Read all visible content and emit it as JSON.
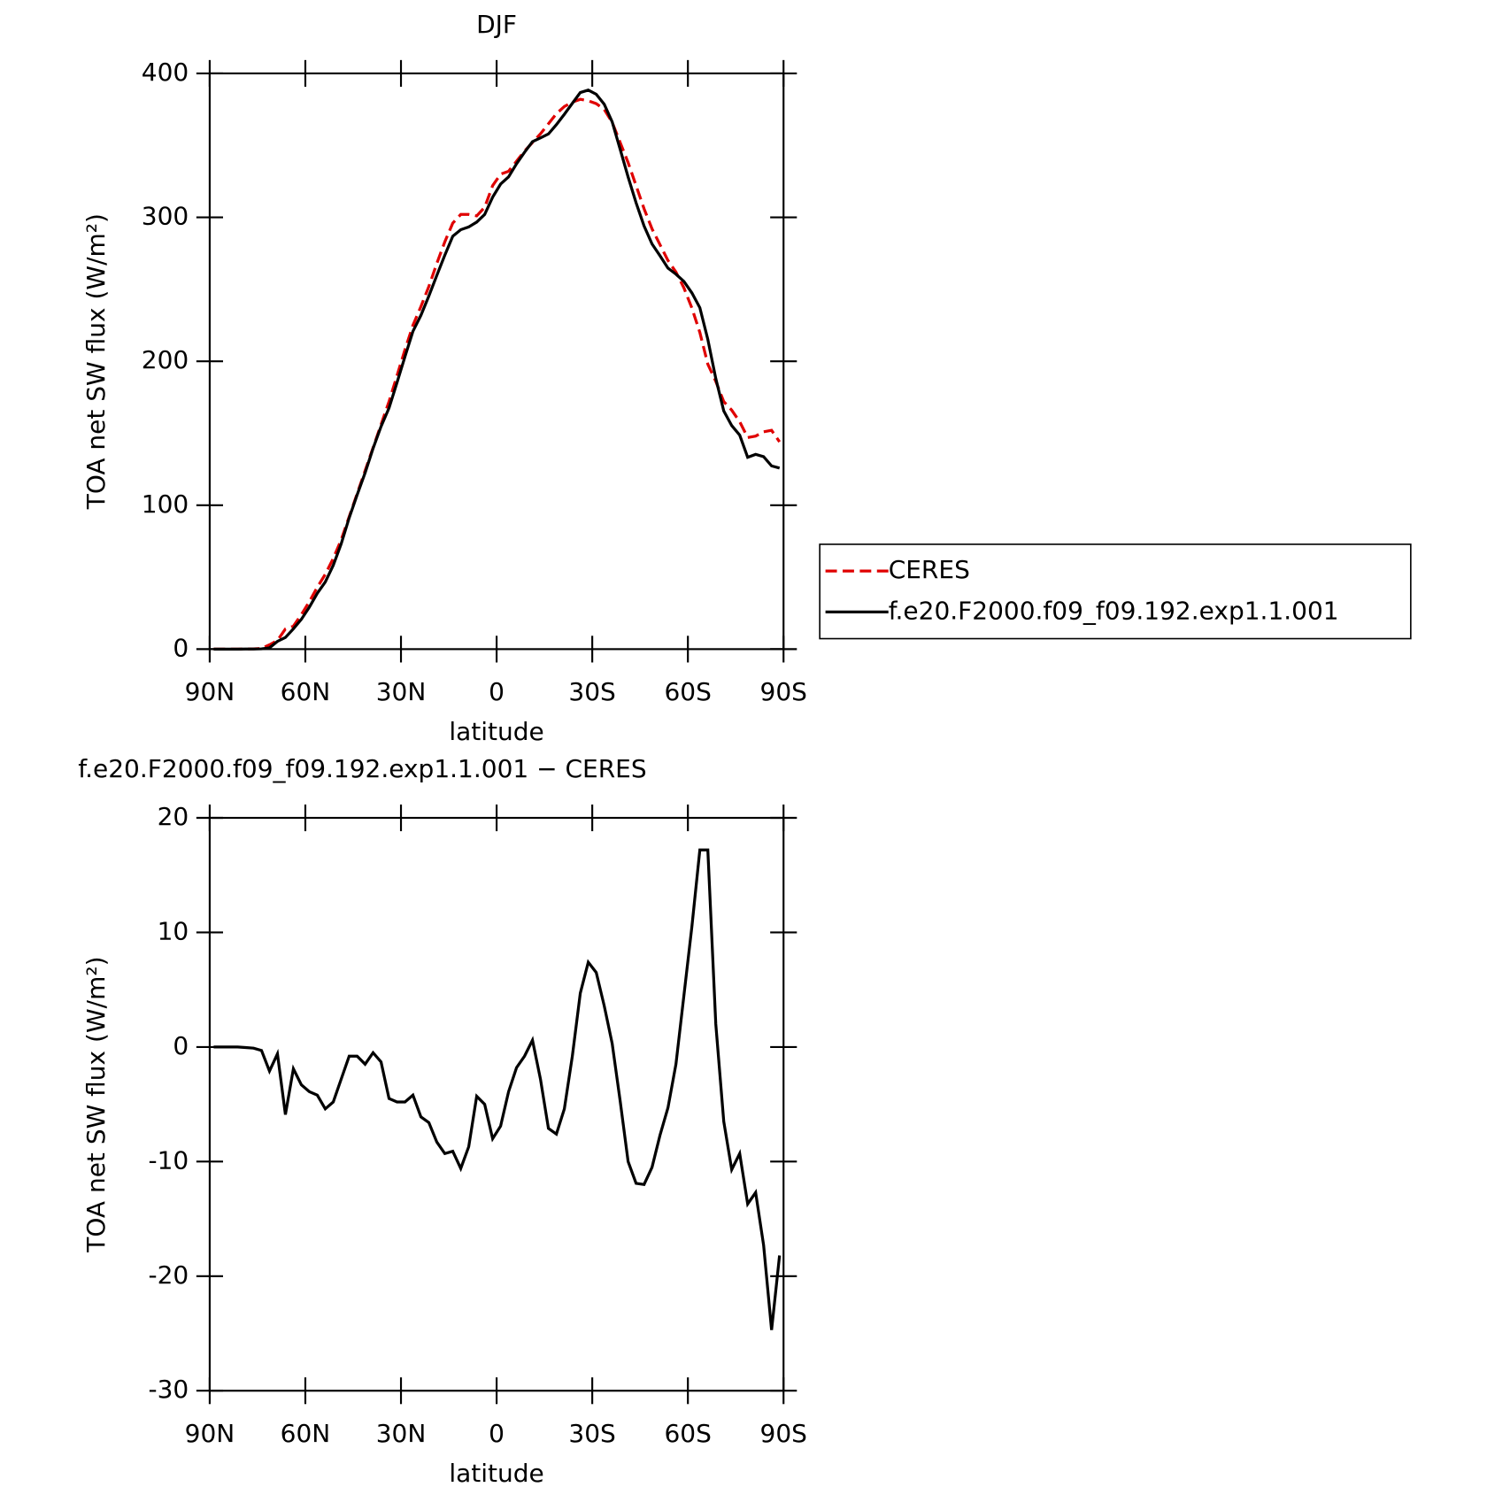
{
  "chart_data": [
    {
      "type": "line",
      "title": "DJF",
      "xlabel": "latitude",
      "ylabel": "TOA net SW flux (W/m²)",
      "x": [
        88.75,
        86.25,
        83.75,
        81.25,
        78.75,
        76.25,
        73.75,
        71.25,
        68.75,
        66.25,
        63.75,
        61.25,
        58.75,
        56.25,
        53.75,
        51.25,
        48.75,
        46.25,
        43.75,
        41.25,
        38.75,
        36.25,
        33.75,
        31.25,
        28.75,
        26.25,
        23.75,
        21.25,
        18.75,
        16.25,
        13.75,
        11.25,
        8.75,
        6.25,
        3.75,
        1.25,
        -1.25,
        -3.75,
        -6.25,
        -8.75,
        -11.25,
        -13.75,
        -16.25,
        -18.75,
        -21.25,
        -23.75,
        -26.25,
        -28.75,
        -31.25,
        -33.75,
        -36.25,
        -38.75,
        -41.25,
        -43.75,
        -46.25,
        -48.75,
        -51.25,
        -53.75,
        -56.25,
        -58.75,
        -61.25,
        -63.75,
        -66.25,
        -68.75,
        -71.25,
        -73.75,
        -76.25,
        -78.75,
        -81.25,
        -83.75,
        -86.25,
        -88.75
      ],
      "xlim": [
        90,
        -90
      ],
      "xticks": [
        {
          "value": 90,
          "label": "90N"
        },
        {
          "value": 60,
          "label": "60N"
        },
        {
          "value": 30,
          "label": "30N"
        },
        0,
        {
          "value": -30,
          "label": "30S"
        },
        {
          "value": -60,
          "label": "60S"
        },
        {
          "value": -90,
          "label": "90S"
        }
      ],
      "ylim": [
        0,
        400
      ],
      "yticks": [
        0,
        100,
        200,
        300,
        400
      ],
      "legend": "right",
      "series": [
        {
          "name": "CERES",
          "color": "#e00000",
          "dash": "dashed",
          "values": [
            0,
            0,
            0,
            0,
            0.1,
            0.2,
            0.5,
            3,
            6,
            14,
            16,
            24,
            33,
            43,
            52,
            63,
            76,
            92,
            108,
            124,
            140,
            156,
            172,
            190,
            208,
            225,
            238,
            252,
            268,
            283,
            296,
            302,
            302,
            301,
            307,
            322,
            330,
            332,
            339,
            346,
            352,
            358,
            365,
            372,
            377,
            380,
            382,
            381,
            379,
            375,
            366,
            352,
            338,
            322,
            306,
            292,
            281,
            270,
            262,
            251,
            237,
            220,
            198,
            186,
            172,
            166,
            158,
            147,
            148,
            151,
            152,
            144
          ]
        },
        {
          "name": "f.e20.F2000.f09_f09.192.exp1.1.001",
          "color": "#000000",
          "values": [
            0,
            0,
            0,
            0,
            0.05,
            0.1,
            0.2,
            0.9,
            5.4,
            8.1,
            14.1,
            20.7,
            29.1,
            38.8,
            46.6,
            58.2,
            73.2,
            91.2,
            107.2,
            122.5,
            139.5,
            154.7,
            167.5,
            185.2,
            203.2,
            220.8,
            231.9,
            245.4,
            259.7,
            273.7,
            286.9,
            291.4,
            293.3,
            296.7,
            302,
            314,
            323.1,
            328.1,
            337.2,
            345.2,
            352.6,
            355.2,
            357.9,
            364.4,
            371.6,
            379.2,
            386.7,
            388.4,
            385.5,
            378.6,
            366.3,
            347.3,
            328,
            310.1,
            294,
            281.5,
            273.3,
            264.7,
            260.5,
            255.5,
            247.5,
            237.2,
            215.2,
            188,
            165.5,
            155.3,
            148.7,
            133.3,
            135.3,
            133.7,
            127.3,
            125.8
          ]
        }
      ]
    },
    {
      "type": "line",
      "title": "f.e20.F2000.f09_f09.192.exp1.1.001 − CERES",
      "xlabel": "latitude",
      "ylabel": "TOA net SW flux (W/m²)",
      "x": [
        88.75,
        86.25,
        83.75,
        81.25,
        78.75,
        76.25,
        73.75,
        71.25,
        68.75,
        66.25,
        63.75,
        61.25,
        58.75,
        56.25,
        53.75,
        51.25,
        48.75,
        46.25,
        43.75,
        41.25,
        38.75,
        36.25,
        33.75,
        31.25,
        28.75,
        26.25,
        23.75,
        21.25,
        18.75,
        16.25,
        13.75,
        11.25,
        8.75,
        6.25,
        3.75,
        1.25,
        -1.25,
        -3.75,
        -6.25,
        -8.75,
        -11.25,
        -13.75,
        -16.25,
        -18.75,
        -21.25,
        -23.75,
        -26.25,
        -28.75,
        -31.25,
        -33.75,
        -36.25,
        -38.75,
        -41.25,
        -43.75,
        -46.25,
        -48.75,
        -51.25,
        -53.75,
        -56.25,
        -58.75,
        -61.25,
        -63.75,
        -66.25,
        -68.75,
        -71.25,
        -73.75,
        -76.25,
        -78.75,
        -81.25,
        -83.75,
        -86.25,
        -88.75
      ],
      "xlim": [
        90,
        -90
      ],
      "xticks": [
        {
          "value": 90,
          "label": "90N"
        },
        {
          "value": 60,
          "label": "60N"
        },
        {
          "value": 30,
          "label": "30N"
        },
        0,
        {
          "value": -30,
          "label": "30S"
        },
        {
          "value": -60,
          "label": "60S"
        },
        {
          "value": -90,
          "label": "90S"
        }
      ],
      "ylim": [
        -30,
        20
      ],
      "yticks": [
        -30,
        -20,
        -10,
        0,
        10,
        20
      ],
      "series": [
        {
          "color": "#000000",
          "values": [
            0,
            0,
            0,
            0,
            -0.05,
            -0.1,
            -0.3,
            -2.1,
            -0.6,
            -5.9,
            -1.9,
            -3.3,
            -3.9,
            -4.2,
            -5.4,
            -4.8,
            -2.8,
            -0.8,
            -0.8,
            -1.5,
            -0.5,
            -1.3,
            -4.5,
            -4.8,
            -4.8,
            -4.2,
            -6.1,
            -6.6,
            -8.3,
            -9.3,
            -9.1,
            -10.6,
            -8.7,
            -4.3,
            -5,
            -8,
            -6.9,
            -3.9,
            -1.8,
            -0.8,
            0.6,
            -2.8,
            -7.1,
            -7.6,
            -5.4,
            -0.8,
            4.7,
            7.4,
            6.5,
            3.6,
            0.3,
            -4.7,
            -10,
            -11.9,
            -12,
            -10.5,
            -7.7,
            -5.3,
            -1.5,
            4.5,
            10.5,
            17.2,
            17.2,
            2,
            -6.5,
            -10.7,
            -9.3,
            -13.7,
            -12.7,
            -17.3,
            -24.7,
            -18.2
          ]
        }
      ]
    }
  ]
}
